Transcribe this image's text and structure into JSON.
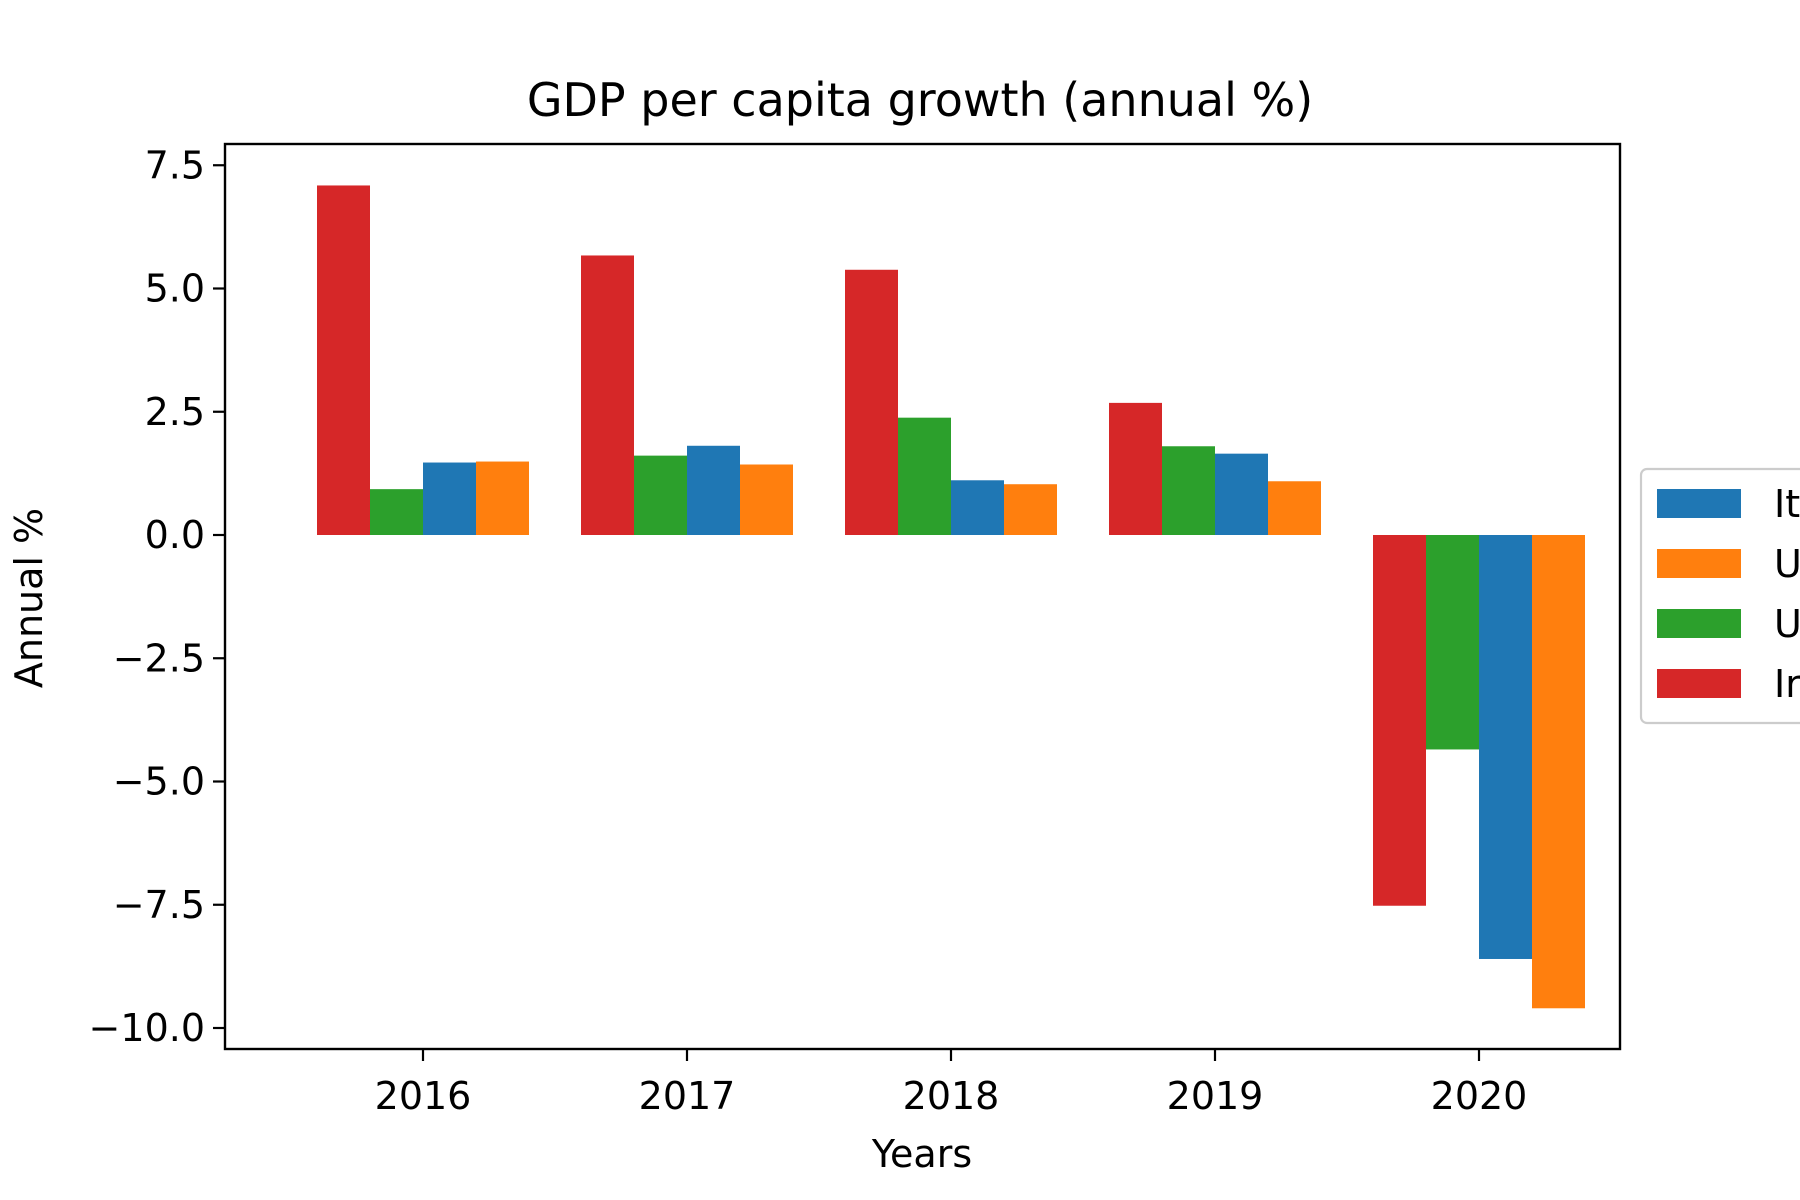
{
  "chart_data": {
    "type": "bar",
    "title": "GDP per capita growth (annual %)",
    "xlabel": "Years",
    "ylabel": "Annual %",
    "categories": [
      "2016",
      "2017",
      "2018",
      "2019",
      "2020"
    ],
    "ylim": [
      -10.5,
      7.9
    ],
    "yticks": [
      7.5,
      5.0,
      2.5,
      0.0,
      -2.5,
      -5.0,
      -7.5,
      -10.0
    ],
    "ytick_labels": [
      "7.5",
      "5.0",
      "2.5",
      "0.0",
      "−2.5",
      "−5.0",
      "−7.5",
      "−10.0"
    ],
    "grid": false,
    "legend_position": "center-right",
    "bar_order": [
      "India",
      "United Kingdom",
      "Italy",
      "United States"
    ],
    "series": [
      {
        "name": "It",
        "values": [
          1.47,
          1.81,
          1.11,
          1.65,
          -8.6
        ],
        "color": "#1f77b4"
      },
      {
        "name": "U",
        "values": [
          1.49,
          1.43,
          1.03,
          1.09,
          -9.6
        ],
        "color": "#ff7f0e"
      },
      {
        "name": "U",
        "values": [
          0.93,
          1.61,
          2.38,
          1.8,
          -4.35
        ],
        "color": "#2ca02c"
      },
      {
        "name": "Ir",
        "values": [
          7.09,
          5.67,
          5.38,
          2.68,
          -7.52
        ],
        "color": "#d62728"
      }
    ],
    "draw_order": [
      3,
      2,
      0,
      1
    ]
  }
}
